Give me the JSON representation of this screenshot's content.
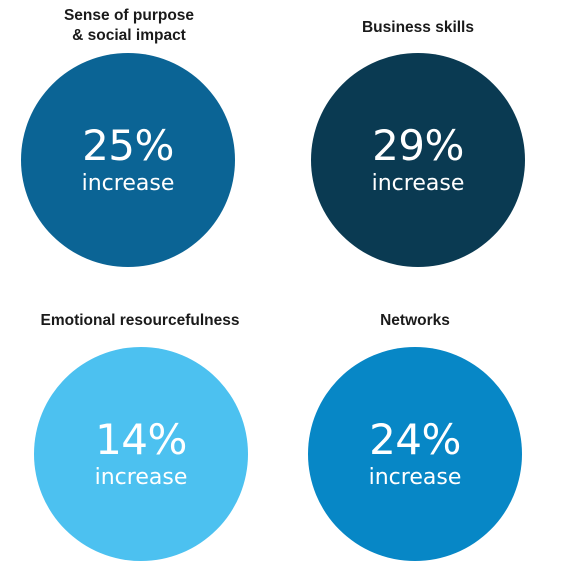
{
  "chart_data": {
    "type": "bubble-stats",
    "items": [
      {
        "label": "Sense of purpose\n& social impact",
        "value": "25%",
        "unit": "increase",
        "color": "#0b6495"
      },
      {
        "label": "Business skills",
        "value": "29%",
        "unit": "increase",
        "color": "#0a3a52"
      },
      {
        "label": "Emotional resourcefulness",
        "value": "14%",
        "unit": "increase",
        "color": "#4cc1f0"
      },
      {
        "label": "Networks",
        "value": "24%",
        "unit": "increase",
        "color": "#0787c6"
      }
    ]
  }
}
